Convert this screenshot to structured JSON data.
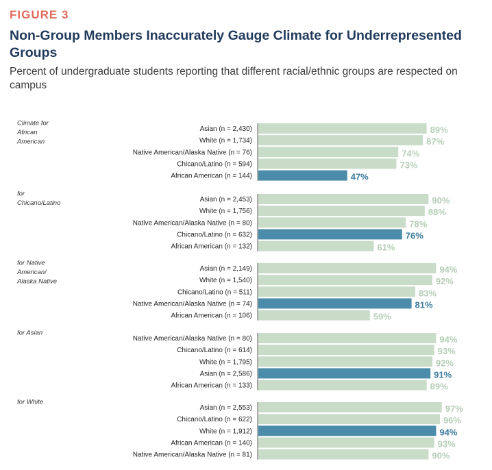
{
  "figure_label": "FIGURE 3",
  "title": "Non-Group Members Inaccurately Gauge Climate for Underrepresented Groups",
  "subtitle": "Percent of undergraduate students reporting that different racial/ethnic groups are respected on campus",
  "colors": {
    "bar": "#c8dcc8",
    "bar_highlight": "#4b8caa",
    "label": "#b5ceb6",
    "label_highlight": "#3b7b9c",
    "figure_label": "#e26a5a",
    "title": "#213a5c"
  },
  "chart_data": {
    "type": "bar",
    "orientation": "horizontal",
    "value_suffix": "%",
    "xlim": [
      0,
      100
    ],
    "groups": [
      {
        "label": "Climate for African American",
        "bars": [
          {
            "category": "Asian (n = 2,430)",
            "value": 89,
            "highlight": false
          },
          {
            "category": "White (n = 1,734)",
            "value": 87,
            "highlight": false
          },
          {
            "category": "Native American/Alaska Native (n = 76)",
            "value": 74,
            "highlight": false
          },
          {
            "category": "Chicano/Latino (n = 594)",
            "value": 73,
            "highlight": false
          },
          {
            "category": "African American (n = 144)",
            "value": 47,
            "highlight": true
          }
        ]
      },
      {
        "label": "for Chicano/Latino",
        "bars": [
          {
            "category": "Asian (n = 2,453)",
            "value": 90,
            "highlight": false
          },
          {
            "category": "White (n = 1,756)",
            "value": 88,
            "highlight": false
          },
          {
            "category": "Native American/Alaska Native (n = 80)",
            "value": 78,
            "highlight": false
          },
          {
            "category": "Chicano/Latino (n = 632)",
            "value": 76,
            "highlight": true
          },
          {
            "category": "African American (n = 132)",
            "value": 61,
            "highlight": false
          }
        ]
      },
      {
        "label": "for Native American/ Alaska Native",
        "bars": [
          {
            "category": "Asian (n = 2,149)",
            "value": 94,
            "highlight": false
          },
          {
            "category": "White (n = 1,540)",
            "value": 92,
            "highlight": false
          },
          {
            "category": "Chicano/Latino (n = 511)",
            "value": 83,
            "highlight": false
          },
          {
            "category": "Native American/Alaska Native (n = 74)",
            "value": 81,
            "highlight": true
          },
          {
            "category": "African American (n = 106)",
            "value": 59,
            "highlight": false
          }
        ]
      },
      {
        "label": "for Asian",
        "bars": [
          {
            "category": "Native American/Alaska Native (n = 80)",
            "value": 94,
            "highlight": false
          },
          {
            "category": "Chicano/Latino (n = 614)",
            "value": 93,
            "highlight": false
          },
          {
            "category": "White (n = 1,795)",
            "value": 92,
            "highlight": false
          },
          {
            "category": "Asian (n = 2,586)",
            "value": 91,
            "highlight": true
          },
          {
            "category": "African American (n = 133)",
            "value": 89,
            "highlight": false
          }
        ]
      },
      {
        "label": "for White",
        "bars": [
          {
            "category": "Asian (n = 2,553)",
            "value": 97,
            "highlight": false
          },
          {
            "category": "Chicano/Latino (n = 622)",
            "value": 96,
            "highlight": false
          },
          {
            "category": "White (n = 1,912)",
            "value": 94,
            "highlight": true
          },
          {
            "category": "African American (n = 140)",
            "value": 93,
            "highlight": false
          },
          {
            "category": "Native American/Alaska Native (n = 81)",
            "value": 90,
            "highlight": false
          }
        ]
      }
    ]
  }
}
